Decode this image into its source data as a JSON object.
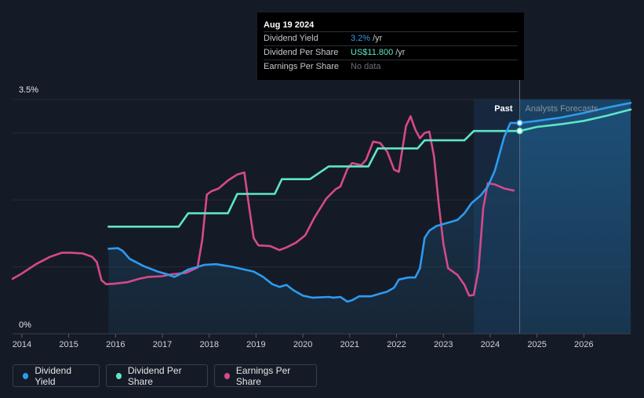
{
  "tooltip": {
    "date": "Aug 19 2024",
    "rows": [
      {
        "label": "Dividend Yield",
        "value": "3.2%",
        "unit": "/yr"
      },
      {
        "label": "Dividend Per Share",
        "value": "US$11.800",
        "unit": "/yr"
      },
      {
        "label": "Earnings Per Share",
        "value": "No data",
        "unit": ""
      }
    ]
  },
  "legend": [
    {
      "label": "Dividend Yield",
      "color": "#2d9bf0"
    },
    {
      "label": "Dividend Per Share",
      "color": "#5ee6c8"
    },
    {
      "label": "Earnings Per Share",
      "color": "#d6498a"
    }
  ],
  "chart_data": {
    "type": "line",
    "y_top_label": "3.5%",
    "y_bottom_label": "0%",
    "ylim": [
      0,
      3.5
    ],
    "x_ticks": [
      "2014",
      "2015",
      "2016",
      "2017",
      "2018",
      "2019",
      "2020",
      "2021",
      "2022",
      "2023",
      "2024",
      "2025",
      "2026"
    ],
    "xlim": [
      2013.8,
      2027.0
    ],
    "past_label": "Past",
    "forecast_label": "Analysts Forecasts",
    "forecast_start": 2024.63,
    "shaded_region_start": 2023.65,
    "series": [
      {
        "name": "Dividend Yield",
        "color": "#2d9bf0",
        "points": [
          [
            2015.85,
            1.27
          ],
          [
            2016.05,
            1.28
          ],
          [
            2016.15,
            1.24
          ],
          [
            2016.3,
            1.12
          ],
          [
            2016.6,
            1.01
          ],
          [
            2016.9,
            0.93
          ],
          [
            2017.1,
            0.89
          ],
          [
            2017.25,
            0.85
          ],
          [
            2017.35,
            0.88
          ],
          [
            2017.55,
            0.96
          ],
          [
            2017.9,
            1.03
          ],
          [
            2018.15,
            1.04
          ],
          [
            2018.5,
            1.0
          ],
          [
            2018.75,
            0.96
          ],
          [
            2018.95,
            0.93
          ],
          [
            2019.15,
            0.85
          ],
          [
            2019.35,
            0.74
          ],
          [
            2019.5,
            0.7
          ],
          [
            2019.65,
            0.73
          ],
          [
            2019.8,
            0.65
          ],
          [
            2020.0,
            0.57
          ],
          [
            2020.2,
            0.54
          ],
          [
            2020.55,
            0.55
          ],
          [
            2020.65,
            0.54
          ],
          [
            2020.8,
            0.55
          ],
          [
            2020.95,
            0.48
          ],
          [
            2021.05,
            0.5
          ],
          [
            2021.2,
            0.56
          ],
          [
            2021.45,
            0.56
          ],
          [
            2021.65,
            0.6
          ],
          [
            2021.8,
            0.63
          ],
          [
            2021.95,
            0.69
          ],
          [
            2022.05,
            0.81
          ],
          [
            2022.25,
            0.84
          ],
          [
            2022.4,
            0.84
          ],
          [
            2022.5,
            0.98
          ],
          [
            2022.6,
            1.43
          ],
          [
            2022.7,
            1.54
          ],
          [
            2022.85,
            1.61
          ],
          [
            2023.1,
            1.66
          ],
          [
            2023.3,
            1.7
          ],
          [
            2023.45,
            1.8
          ],
          [
            2023.6,
            1.95
          ],
          [
            2023.8,
            2.07
          ],
          [
            2023.95,
            2.2
          ],
          [
            2024.1,
            2.44
          ],
          [
            2024.3,
            2.94
          ],
          [
            2024.43,
            3.15
          ],
          [
            2024.55,
            3.15
          ],
          [
            2024.63,
            3.15
          ],
          [
            2025.0,
            3.18
          ],
          [
            2025.5,
            3.23
          ],
          [
            2026.0,
            3.3
          ],
          [
            2026.5,
            3.38
          ],
          [
            2027.0,
            3.45
          ]
        ]
      },
      {
        "name": "Dividend Per Share",
        "color": "#5ee6c8",
        "points": [
          [
            2015.85,
            1.6
          ],
          [
            2017.35,
            1.6
          ],
          [
            2017.55,
            1.8
          ],
          [
            2018.4,
            1.8
          ],
          [
            2018.6,
            2.09
          ],
          [
            2019.4,
            2.09
          ],
          [
            2019.55,
            2.31
          ],
          [
            2020.15,
            2.31
          ],
          [
            2020.55,
            2.5
          ],
          [
            2021.4,
            2.5
          ],
          [
            2021.6,
            2.77
          ],
          [
            2022.45,
            2.77
          ],
          [
            2022.6,
            2.89
          ],
          [
            2023.45,
            2.89
          ],
          [
            2023.65,
            3.03
          ],
          [
            2024.63,
            3.03
          ],
          [
            2025.0,
            3.09
          ],
          [
            2025.5,
            3.13
          ],
          [
            2026.0,
            3.18
          ],
          [
            2026.5,
            3.26
          ],
          [
            2027.0,
            3.35
          ]
        ]
      },
      {
        "name": "Earnings Per Share",
        "color": "#d6498a",
        "points": [
          [
            2013.8,
            0.82
          ],
          [
            2014.0,
            0.9
          ],
          [
            2014.3,
            1.04
          ],
          [
            2014.6,
            1.15
          ],
          [
            2014.85,
            1.21
          ],
          [
            2015.05,
            1.21
          ],
          [
            2015.3,
            1.2
          ],
          [
            2015.5,
            1.15
          ],
          [
            2015.6,
            1.07
          ],
          [
            2015.7,
            0.8
          ],
          [
            2015.8,
            0.74
          ],
          [
            2016.0,
            0.75
          ],
          [
            2016.25,
            0.77
          ],
          [
            2016.5,
            0.82
          ],
          [
            2016.7,
            0.85
          ],
          [
            2017.0,
            0.86
          ],
          [
            2017.2,
            0.89
          ],
          [
            2017.5,
            0.91
          ],
          [
            2017.75,
            0.99
          ],
          [
            2017.85,
            1.4
          ],
          [
            2017.95,
            2.08
          ],
          [
            2018.05,
            2.13
          ],
          [
            2018.2,
            2.17
          ],
          [
            2018.4,
            2.29
          ],
          [
            2018.6,
            2.38
          ],
          [
            2018.75,
            2.41
          ],
          [
            2018.85,
            1.9
          ],
          [
            2018.95,
            1.43
          ],
          [
            2019.05,
            1.32
          ],
          [
            2019.3,
            1.31
          ],
          [
            2019.5,
            1.25
          ],
          [
            2019.65,
            1.29
          ],
          [
            2019.85,
            1.36
          ],
          [
            2020.05,
            1.47
          ],
          [
            2020.25,
            1.74
          ],
          [
            2020.5,
            2.02
          ],
          [
            2020.7,
            2.16
          ],
          [
            2020.8,
            2.2
          ],
          [
            2020.95,
            2.46
          ],
          [
            2021.05,
            2.55
          ],
          [
            2021.25,
            2.52
          ],
          [
            2021.35,
            2.6
          ],
          [
            2021.5,
            2.87
          ],
          [
            2021.65,
            2.85
          ],
          [
            2021.8,
            2.72
          ],
          [
            2021.95,
            2.45
          ],
          [
            2022.05,
            2.42
          ],
          [
            2022.2,
            3.1
          ],
          [
            2022.3,
            3.25
          ],
          [
            2022.4,
            3.05
          ],
          [
            2022.5,
            2.92
          ],
          [
            2022.6,
            3.0
          ],
          [
            2022.7,
            3.02
          ],
          [
            2022.8,
            2.65
          ],
          [
            2022.9,
            1.95
          ],
          [
            2023.0,
            1.35
          ],
          [
            2023.1,
            0.98
          ],
          [
            2023.3,
            0.88
          ],
          [
            2023.45,
            0.73
          ],
          [
            2023.55,
            0.57
          ],
          [
            2023.65,
            0.58
          ],
          [
            2023.75,
            0.95
          ],
          [
            2023.85,
            1.87
          ],
          [
            2023.95,
            2.25
          ],
          [
            2024.1,
            2.23
          ],
          [
            2024.3,
            2.17
          ],
          [
            2024.5,
            2.14
          ]
        ]
      }
    ]
  }
}
